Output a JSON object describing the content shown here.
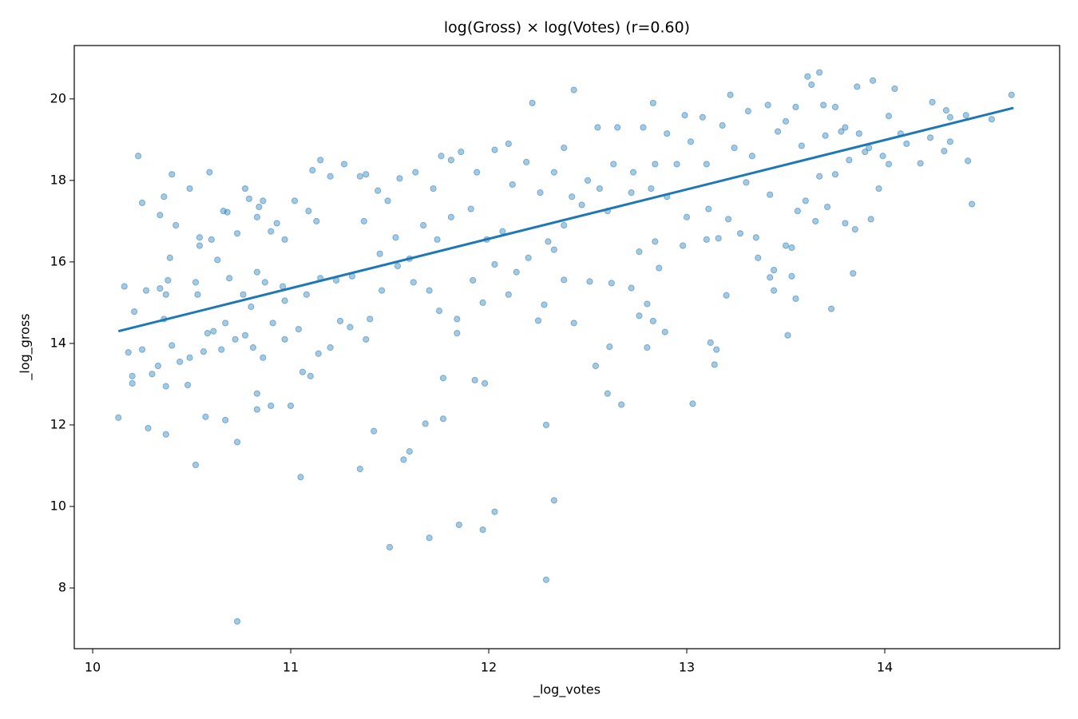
{
  "chart_data": {
    "type": "scatter",
    "title": "log(Gross) × log(Votes)  (r=0.60)",
    "x_label": "_log_votes",
    "y_label": "_log_gross",
    "xlim": [
      9.907,
      14.883
    ],
    "ylim": [
      6.51,
      21.31
    ],
    "xticks": [
      10,
      11,
      12,
      13,
      14
    ],
    "yticks": [
      8,
      10,
      12,
      14,
      16,
      18,
      20
    ],
    "grid": false,
    "series": [
      {
        "type": "scatter",
        "color": "#1f77b4",
        "x": [
          10.13,
          10.73,
          12.29,
          11.5,
          11.7,
          11.85,
          11.97,
          12.03,
          12.33,
          11.05,
          11.35,
          10.52,
          11.57,
          11.6,
          11.42,
          10.73,
          10.28,
          10.37,
          10.57,
          10.67,
          11.68,
          11.77,
          12.29,
          13.03,
          12.67,
          12.6,
          11.77,
          11.93,
          11.98,
          10.2,
          10.2,
          10.3,
          10.37,
          10.48,
          10.83,
          10.83,
          10.9,
          11.0,
          10.23,
          10.59,
          10.4,
          10.25,
          10.36,
          10.34,
          10.49,
          10.42,
          10.54,
          10.6,
          10.54,
          10.63,
          10.66,
          10.68,
          10.73,
          10.77,
          10.79,
          10.84,
          10.83,
          10.86,
          10.9,
          10.93,
          10.97,
          11.02,
          11.09,
          11.13,
          11.15,
          11.11,
          11.2,
          11.27,
          11.35,
          11.38,
          11.44,
          11.49,
          11.55,
          11.63,
          11.72,
          11.76,
          11.81,
          11.86,
          11.94,
          12.03,
          12.1,
          12.19,
          12.22,
          12.43,
          12.55,
          12.65,
          12.78,
          12.83,
          12.9,
          12.99,
          13.08,
          13.18,
          13.22,
          13.31,
          13.41,
          13.5,
          13.55,
          13.61,
          13.63,
          13.67,
          13.69,
          13.75,
          13.86,
          13.94,
          14.02,
          14.05,
          14.08,
          14.11,
          14.18,
          14.24,
          14.23,
          14.31,
          14.33,
          14.3,
          14.33,
          14.41,
          14.42,
          14.44,
          14.54,
          14.64,
          14.02,
          13.97,
          13.9,
          13.93,
          13.85,
          13.84,
          13.73,
          13.71,
          13.6,
          13.56,
          13.53,
          13.55,
          13.51,
          13.44,
          13.42,
          13.44,
          13.36,
          13.15,
          13.14,
          13.12,
          13.2,
          12.89,
          12.83,
          12.8,
          12.8,
          12.61,
          12.54,
          12.43,
          12.25,
          12.28,
          12.38,
          12.51,
          12.62,
          12.72,
          12.76,
          12.86,
          12.76,
          12.84,
          12.98,
          13.1,
          13.16,
          13.27,
          13.35,
          13.5,
          13.53,
          13.65,
          13.8,
          13.75,
          13.67,
          13.78,
          13.87,
          13.82,
          13.42,
          13.3,
          13.21,
          13.11,
          13.0,
          12.9,
          12.82,
          12.72,
          12.6,
          12.47,
          12.38,
          12.3,
          12.2,
          12.14,
          12.03,
          11.97,
          11.92,
          11.84,
          11.84,
          11.75,
          11.7,
          11.62,
          11.54,
          11.46,
          11.4,
          11.38,
          11.3,
          11.25,
          11.2,
          11.14,
          11.1,
          11.06,
          11.04,
          10.97,
          10.91,
          10.86,
          10.81,
          10.77,
          10.72,
          10.65,
          10.61,
          10.56,
          10.49,
          10.44,
          10.4,
          10.33,
          10.18,
          10.25,
          10.21,
          10.16,
          10.27,
          10.36,
          10.37,
          10.38,
          10.34,
          10.39,
          10.52,
          10.53,
          10.58,
          10.67,
          10.69,
          10.76,
          10.8,
          10.83,
          10.87,
          10.96,
          10.97,
          11.08,
          11.15,
          11.23,
          11.31,
          11.37,
          11.45,
          11.53,
          11.6,
          11.67,
          11.74,
          11.81,
          11.91,
          11.99,
          12.07,
          12.12,
          12.26,
          12.33,
          12.42,
          12.5,
          12.63,
          12.73,
          12.84,
          12.95,
          13.02,
          13.1,
          13.24,
          13.33,
          13.46,
          13.58,
          13.7,
          13.8,
          13.92,
          13.99,
          12.33,
          12.1,
          12.38,
          12.56
        ],
        "values": [
          12.18,
          7.18,
          8.2,
          9.0,
          9.23,
          9.55,
          9.43,
          9.87,
          10.15,
          10.72,
          10.92,
          11.02,
          11.15,
          11.35,
          11.85,
          11.58,
          11.92,
          11.77,
          12.2,
          12.12,
          12.03,
          12.15,
          12.0,
          12.52,
          12.5,
          12.77,
          13.15,
          13.1,
          13.02,
          13.02,
          13.2,
          13.25,
          12.95,
          12.98,
          12.38,
          12.77,
          12.47,
          12.47,
          18.6,
          18.2,
          18.15,
          17.45,
          17.6,
          17.15,
          17.8,
          16.9,
          16.6,
          16.55,
          16.4,
          16.05,
          17.25,
          17.22,
          16.7,
          17.8,
          17.55,
          17.35,
          17.1,
          17.5,
          16.75,
          16.95,
          16.55,
          17.5,
          17.25,
          17.0,
          18.5,
          18.25,
          18.1,
          18.4,
          18.1,
          18.15,
          17.75,
          17.5,
          18.05,
          18.2,
          17.8,
          18.6,
          18.5,
          18.7,
          18.2,
          18.75,
          18.9,
          18.45,
          19.9,
          20.22,
          19.3,
          19.3,
          19.3,
          19.9,
          19.15,
          19.6,
          19.55,
          19.35,
          20.1,
          19.7,
          19.85,
          19.45,
          19.8,
          20.55,
          20.35,
          20.65,
          19.85,
          19.8,
          20.3,
          20.45,
          19.58,
          20.25,
          19.15,
          18.9,
          18.42,
          19.92,
          19.05,
          19.72,
          19.55,
          18.72,
          18.95,
          19.6,
          18.48,
          17.42,
          19.5,
          20.1,
          18.4,
          17.8,
          18.7,
          17.05,
          16.8,
          15.72,
          14.85,
          17.35,
          17.5,
          17.25,
          15.65,
          15.1,
          14.2,
          15.3,
          15.62,
          15.8,
          16.1,
          13.85,
          13.48,
          14.02,
          15.18,
          14.28,
          14.55,
          14.97,
          13.9,
          13.92,
          13.45,
          14.5,
          14.56,
          14.95,
          15.56,
          15.52,
          15.48,
          15.36,
          14.68,
          15.85,
          16.25,
          16.5,
          16.4,
          16.55,
          16.58,
          16.7,
          16.6,
          16.4,
          16.35,
          17.0,
          16.95,
          18.15,
          18.1,
          19.2,
          19.15,
          18.5,
          17.65,
          17.95,
          17.05,
          17.3,
          17.1,
          17.6,
          17.8,
          17.7,
          17.25,
          17.4,
          16.9,
          16.5,
          16.1,
          15.75,
          15.94,
          15.0,
          15.55,
          14.6,
          14.25,
          14.8,
          15.3,
          15.5,
          15.9,
          15.3,
          14.6,
          14.1,
          14.4,
          14.55,
          13.9,
          13.75,
          13.2,
          13.3,
          14.35,
          14.1,
          14.5,
          13.65,
          13.9,
          14.2,
          14.1,
          13.85,
          14.3,
          13.8,
          13.65,
          13.55,
          13.95,
          13.45,
          13.78,
          13.85,
          14.78,
          15.4,
          15.3,
          14.6,
          15.2,
          15.55,
          15.35,
          16.1,
          15.5,
          15.2,
          14.25,
          14.5,
          15.6,
          15.2,
          14.9,
          15.75,
          15.5,
          15.4,
          15.05,
          15.2,
          15.6,
          15.55,
          15.65,
          17.0,
          16.2,
          16.6,
          16.08,
          16.9,
          16.55,
          17.1,
          17.3,
          16.55,
          16.75,
          17.9,
          17.7,
          18.2,
          17.6,
          18.0,
          18.4,
          18.2,
          18.4,
          18.4,
          18.95,
          18.4,
          18.8,
          18.6,
          19.2,
          18.85,
          19.1,
          19.3,
          18.8,
          18.6,
          16.3,
          15.2,
          18.8,
          17.8
        ]
      },
      {
        "type": "line",
        "color": "#1f77b4",
        "x": [
          10.13,
          14.65
        ],
        "values": [
          14.3,
          19.78
        ]
      }
    ]
  }
}
